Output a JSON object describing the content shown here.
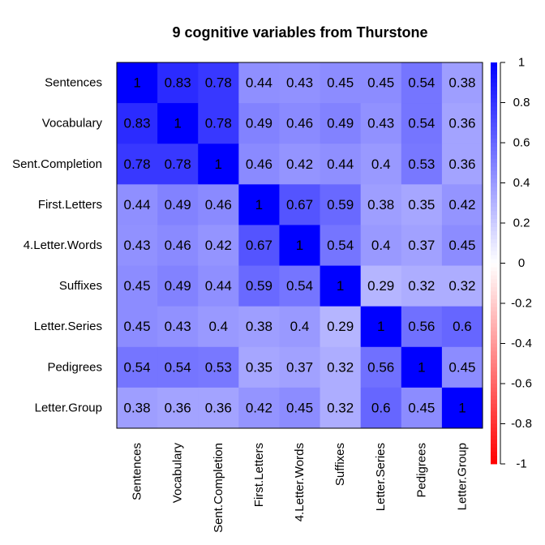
{
  "chart_data": {
    "type": "heatmap",
    "title": "9 cognitive variables from Thurstone",
    "rows": [
      "Sentences",
      "Vocabulary",
      "Sent.Completion",
      "First.Letters",
      "4.Letter.Words",
      "Suffixes",
      "Letter.Series",
      "Pedigrees",
      "Letter.Group"
    ],
    "cols": [
      "Sentences",
      "Vocabulary",
      "Sent.Completion",
      "First.Letters",
      "4.Letter.Words",
      "Suffixes",
      "Letter.Series",
      "Pedigrees",
      "Letter.Group"
    ],
    "values": [
      [
        1,
        0.83,
        0.78,
        0.44,
        0.43,
        0.45,
        0.45,
        0.54,
        0.38
      ],
      [
        0.83,
        1,
        0.78,
        0.49,
        0.46,
        0.49,
        0.43,
        0.54,
        0.36
      ],
      [
        0.78,
        0.78,
        1,
        0.46,
        0.42,
        0.44,
        0.4,
        0.53,
        0.36
      ],
      [
        0.44,
        0.49,
        0.46,
        1,
        0.67,
        0.59,
        0.38,
        0.35,
        0.42
      ],
      [
        0.43,
        0.46,
        0.42,
        0.67,
        1,
        0.54,
        0.4,
        0.37,
        0.45
      ],
      [
        0.45,
        0.49,
        0.44,
        0.59,
        0.54,
        1,
        0.29,
        0.32,
        0.32
      ],
      [
        0.45,
        0.43,
        0.4,
        0.38,
        0.4,
        0.29,
        1,
        0.56,
        0.6
      ],
      [
        0.54,
        0.54,
        0.53,
        0.35,
        0.37,
        0.32,
        0.56,
        1,
        0.45
      ],
      [
        0.38,
        0.36,
        0.36,
        0.42,
        0.45,
        0.32,
        0.6,
        0.45,
        1
      ]
    ],
    "color_scale": {
      "min": -1,
      "max": 1,
      "low_color": "#FF0000",
      "mid_color": "#FFFFFF",
      "high_color": "#0000FF"
    },
    "colorbar_ticks": [
      "1",
      "0.8",
      "0.6",
      "0.4",
      "0.2",
      "0",
      "-0.2",
      "-0.4",
      "-0.6",
      "-0.8",
      "-1"
    ],
    "colorbar_tick_values": [
      1,
      0.8,
      0.6,
      0.4,
      0.2,
      0,
      -0.2,
      -0.4,
      -0.6,
      -0.8,
      -1
    ],
    "legend_position": "right"
  }
}
